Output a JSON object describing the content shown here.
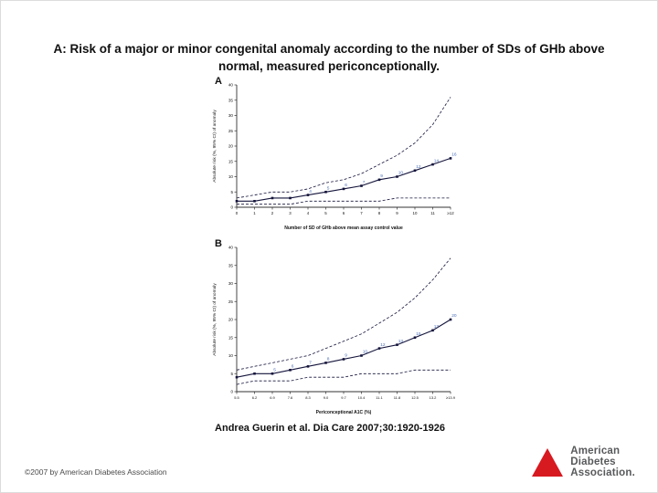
{
  "slide": {
    "title": "A: Risk of a major or minor congenital anomaly according to the number of SDs of GHb above normal, measured periconceptionally.",
    "citation": "Andrea Guerin et al. Dia Care 2007;30:1920-1926",
    "copyright": "©2007 by American Diabetes Association",
    "logo": {
      "line1": "American",
      "line2": "Diabetes",
      "line3": "Association.",
      "color": "#d71920",
      "text_color": "#58595b"
    }
  },
  "colors": {
    "axis": "#333333",
    "tick_text": "#111111",
    "line": "#14143c",
    "marker": "#14143c",
    "point_label": "#4a6db8"
  },
  "chart_data": [
    {
      "id": "chartA",
      "type": "line",
      "panel_label": "A",
      "xlabel": "Number of SD of GHb above mean assay control value",
      "ylabel": "Absolute risk (%, 95% CI) of anomaly",
      "categories": [
        "0",
        "1",
        "2",
        "3",
        "4",
        "5",
        "6",
        "7",
        "8",
        "9",
        "10",
        "11",
        "≥12"
      ],
      "ylim": [
        0,
        40
      ],
      "yticks": [
        0,
        5,
        10,
        15,
        20,
        25,
        30,
        35,
        40
      ],
      "grid": false,
      "legend": "none",
      "series": [
        {
          "name": "Upper 95% CI",
          "style": "dashed",
          "values": [
            3,
            4,
            5,
            5,
            6,
            8,
            9,
            11,
            14,
            17,
            21,
            27,
            36
          ]
        },
        {
          "name": "Lower 95% CI",
          "style": "dashed",
          "values": [
            1,
            1,
            1,
            1,
            2,
            2,
            2,
            2,
            2,
            3,
            3,
            3,
            3
          ]
        },
        {
          "name": "Absolute risk of anomaly",
          "style": "solid",
          "values": [
            2,
            2,
            3,
            3,
            4,
            5,
            6,
            7,
            9,
            10,
            12,
            14,
            16
          ],
          "point_labels": [
            "",
            "",
            "",
            "",
            "4",
            "5",
            "6",
            "7",
            "9",
            "10",
            "12",
            "14",
            "16"
          ]
        }
      ]
    },
    {
      "id": "chartB",
      "type": "line",
      "panel_label": "B",
      "xlabel": "Periconceptional A1C (%)",
      "ylabel": "Absolute risk (%, 95% CI) of anomaly",
      "categories": [
        "5.5",
        "6.2",
        "6.9",
        "7.6",
        "8.3",
        "9.0",
        "9.7",
        "10.4",
        "11.1",
        "11.8",
        "12.5",
        "13.2",
        "≥13.9"
      ],
      "ylim": [
        0,
        40
      ],
      "yticks": [
        0,
        5,
        10,
        15,
        20,
        25,
        30,
        35,
        40
      ],
      "grid": false,
      "legend": "none",
      "series": [
        {
          "name": "Upper 95% CI",
          "style": "dashed",
          "values": [
            6,
            7,
            8,
            9,
            10,
            12,
            14,
            16,
            19,
            22,
            26,
            31,
            37
          ]
        },
        {
          "name": "Lower 95% CI",
          "style": "dashed",
          "values": [
            2,
            3,
            3,
            3,
            4,
            4,
            4,
            5,
            5,
            5,
            6,
            6,
            6
          ]
        },
        {
          "name": "Absolute risk of anomaly",
          "style": "solid",
          "values": [
            4,
            5,
            5,
            6,
            7,
            8,
            9,
            10,
            12,
            13,
            15,
            17,
            20
          ],
          "point_labels": [
            "",
            "",
            "5",
            "6",
            "7",
            "8",
            "9",
            "10",
            "12",
            "13",
            "15",
            "17",
            "20"
          ]
        }
      ]
    }
  ]
}
